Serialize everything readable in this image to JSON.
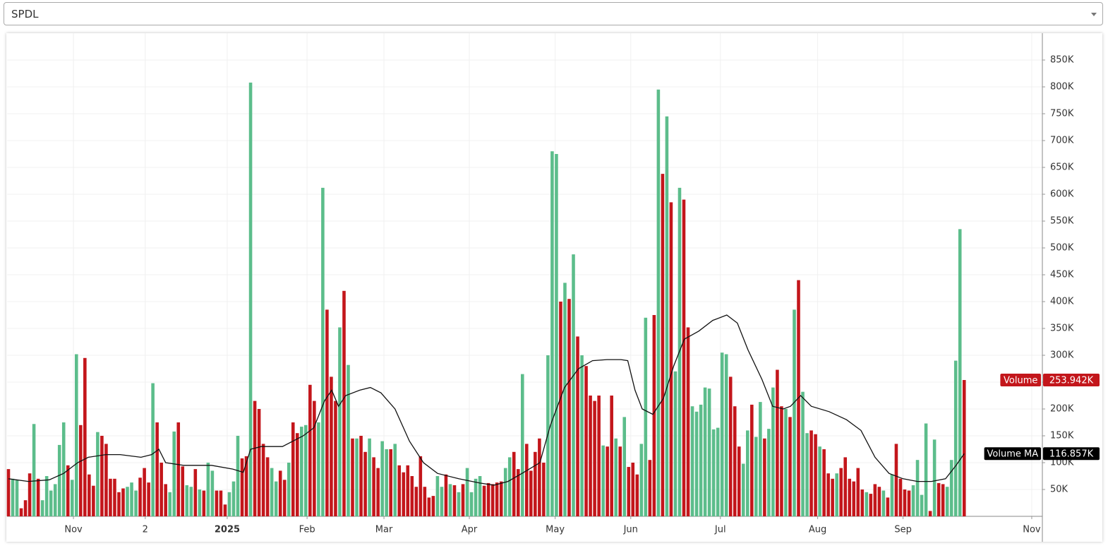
{
  "symbol": "SPDL",
  "chart_data": {
    "type": "bar",
    "xlim": [
      -0.33,
      243.4
    ],
    "xticks": [
      {
        "value": 15.3,
        "label": "Nov"
      },
      {
        "value": 32.2,
        "label": "2"
      },
      {
        "value": 51.5,
        "label": "2025",
        "bold": true
      },
      {
        "value": 70.3,
        "label": "Feb"
      },
      {
        "value": 88.4,
        "label": "Mar"
      },
      {
        "value": 108.5,
        "label": "Apr"
      },
      {
        "value": 128.7,
        "label": "May"
      },
      {
        "value": 146.5,
        "label": "Jun"
      },
      {
        "value": 167.6,
        "label": "Jul"
      },
      {
        "value": 190.5,
        "label": "Aug"
      },
      {
        "value": 210.6,
        "label": "Sep"
      },
      {
        "value": 240.9,
        "label": "Nov"
      }
    ],
    "ylim": [
      0,
      900000
    ],
    "yticks": [
      {
        "value": 50000,
        "label": "50K"
      },
      {
        "value": 100000,
        "label": "100K"
      },
      {
        "value": 150000,
        "label": "150K"
      },
      {
        "value": 200000,
        "label": "200K"
      },
      {
        "value": 250000,
        "label": "250K"
      },
      {
        "value": 300000,
        "label": "300K"
      },
      {
        "value": 350000,
        "label": "350K"
      },
      {
        "value": 400000,
        "label": "400K"
      },
      {
        "value": 450000,
        "label": "450K"
      },
      {
        "value": 500000,
        "label": "500K"
      },
      {
        "value": 550000,
        "label": "550K"
      },
      {
        "value": 600000,
        "label": "600K"
      },
      {
        "value": 650000,
        "label": "650K"
      },
      {
        "value": 700000,
        "label": "700K"
      },
      {
        "value": 750000,
        "label": "750K"
      },
      {
        "value": 800000,
        "label": "800K"
      },
      {
        "value": 850000,
        "label": "850K"
      }
    ],
    "grid": true,
    "series": [
      {
        "name": "Volume",
        "type": "bar",
        "badge_color": "#c3161b",
        "values": [
          88000,
          70000,
          68000,
          15000,
          30000,
          80000,
          172000,
          70000,
          30000,
          75000,
          48000,
          60000,
          133000,
          175000,
          95000,
          68000,
          302000,
          170000,
          295000,
          78000,
          57000,
          157000,
          150000,
          135000,
          70000,
          70000,
          45000,
          52000,
          55000,
          63000,
          48000,
          72000,
          90000,
          63000,
          248000,
          175000,
          100000,
          60000,
          45000,
          158000,
          175000,
          93000,
          58000,
          55000,
          88000,
          50000,
          48000,
          100000,
          85000,
          48000,
          48000,
          22000,
          45000,
          65000,
          150000,
          108000,
          112000,
          808000,
          215000,
          200000,
          135000,
          110000,
          90000,
          65000,
          85000,
          68000,
          100000,
          175000,
          155000,
          167000,
          170000,
          245000,
          215000,
          175000,
          612000,
          385000,
          260000,
          215000,
          352000,
          420000,
          282000,
          145000,
          145000,
          150000,
          120000,
          145000,
          110000,
          90000,
          140000,
          125000,
          125000,
          135000,
          95000,
          82000,
          95000,
          75000,
          55000,
          112000,
          55000,
          35000,
          38000,
          75000,
          55000,
          78000,
          60000,
          58000,
          45000,
          60000,
          90000,
          45000,
          70000,
          75000,
          57000,
          62000,
          60000,
          63000,
          65000,
          90000,
          110000,
          120000,
          88000,
          265000,
          135000,
          85000,
          120000,
          145000,
          100000,
          300000,
          680000,
          675000,
          400000,
          435000,
          405000,
          488000,
          335000,
          300000,
          280000,
          225000,
          215000,
          225000,
          132000,
          130000,
          225000,
          145000,
          130000,
          185000,
          92000,
          100000,
          78000,
          135000,
          370000,
          105000,
          375000,
          795000,
          638000,
          745000,
          585000,
          270000,
          612000,
          590000,
          352000,
          205000,
          195000,
          208000,
          240000,
          238000,
          162000,
          165000,
          305000,
          302000,
          260000,
          205000,
          130000,
          98000,
          160000,
          208000,
          148000,
          213000,
          145000,
          163000,
          240000,
          273000,
          205000,
          200000,
          185000,
          385000,
          440000,
          232000,
          155000,
          160000,
          153000,
          130000,
          125000,
          80000,
          70000,
          80000,
          90000,
          110000,
          70000,
          65000,
          90000,
          50000,
          45000,
          42000,
          60000,
          55000,
          48000,
          35000,
          78000,
          135000,
          70000,
          50000,
          48000,
          58000,
          105000,
          40000,
          173000,
          10000,
          143000,
          62000,
          60000,
          55000,
          105000,
          290000,
          535000,
          253942
        ],
        "colors": [
          "#c3161b",
          "#5cbd8b",
          "#5cbd8b",
          "#c3161b",
          "#c3161b",
          "#c3161b",
          "#5cbd8b",
          "#c3161b",
          "#5cbd8b",
          "#5cbd8b",
          "#5cbd8b",
          "#5cbd8b",
          "#5cbd8b",
          "#5cbd8b",
          "#c3161b",
          "#5cbd8b",
          "#5cbd8b",
          "#c3161b",
          "#c3161b",
          "#c3161b",
          "#c3161b",
          "#5cbd8b",
          "#c3161b",
          "#c3161b",
          "#c3161b",
          "#c3161b",
          "#c3161b",
          "#c3161b",
          "#5cbd8b",
          "#5cbd8b",
          "#5cbd8b",
          "#c3161b",
          "#c3161b",
          "#c3161b",
          "#5cbd8b",
          "#c3161b",
          "#c3161b",
          "#c3161b",
          "#5cbd8b",
          "#5cbd8b",
          "#c3161b",
          "#c3161b",
          "#5cbd8b",
          "#5cbd8b",
          "#c3161b",
          "#5cbd8b",
          "#c3161b",
          "#5cbd8b",
          "#5cbd8b",
          "#c3161b",
          "#c3161b",
          "#c3161b",
          "#5cbd8b",
          "#5cbd8b",
          "#5cbd8b",
          "#c3161b",
          "#c3161b",
          "#5cbd8b",
          "#c3161b",
          "#c3161b",
          "#c3161b",
          "#c3161b",
          "#5cbd8b",
          "#5cbd8b",
          "#c3161b",
          "#c3161b",
          "#5cbd8b",
          "#c3161b",
          "#c3161b",
          "#5cbd8b",
          "#5cbd8b",
          "#c3161b",
          "#c3161b",
          "#5cbd8b",
          "#5cbd8b",
          "#c3161b",
          "#c3161b",
          "#c3161b",
          "#5cbd8b",
          "#c3161b",
          "#5cbd8b",
          "#c3161b",
          "#5cbd8b",
          "#c3161b",
          "#c3161b",
          "#5cbd8b",
          "#c3161b",
          "#c3161b",
          "#5cbd8b",
          "#5cbd8b",
          "#c3161b",
          "#5cbd8b",
          "#c3161b",
          "#c3161b",
          "#c3161b",
          "#c3161b",
          "#c3161b",
          "#c3161b",
          "#c3161b",
          "#c3161b",
          "#c3161b",
          "#5cbd8b",
          "#5cbd8b",
          "#c3161b",
          "#5cbd8b",
          "#c3161b",
          "#5cbd8b",
          "#c3161b",
          "#5cbd8b",
          "#5cbd8b",
          "#5cbd8b",
          "#5cbd8b",
          "#c3161b",
          "#c3161b",
          "#c3161b",
          "#c3161b",
          "#c3161b",
          "#5cbd8b",
          "#5cbd8b",
          "#c3161b",
          "#c3161b",
          "#5cbd8b",
          "#c3161b",
          "#c3161b",
          "#c3161b",
          "#c3161b",
          "#c3161b",
          "#5cbd8b",
          "#5cbd8b",
          "#5cbd8b",
          "#c3161b",
          "#5cbd8b",
          "#c3161b",
          "#5cbd8b",
          "#c3161b",
          "#5cbd8b",
          "#c3161b",
          "#c3161b",
          "#c3161b",
          "#c3161b",
          "#5cbd8b",
          "#c3161b",
          "#c3161b",
          "#5cbd8b",
          "#c3161b",
          "#5cbd8b",
          "#c3161b",
          "#c3161b",
          "#c3161b",
          "#5cbd8b",
          "#5cbd8b",
          "#c3161b",
          "#c3161b",
          "#5cbd8b",
          "#c3161b",
          "#5cbd8b",
          "#c3161b",
          "#5cbd8b",
          "#5cbd8b",
          "#c3161b",
          "#c3161b",
          "#5cbd8b",
          "#5cbd8b",
          "#5cbd8b",
          "#5cbd8b",
          "#5cbd8b",
          "#5cbd8b",
          "#5cbd8b",
          "#5cbd8b",
          "#5cbd8b",
          "#c3161b",
          "#c3161b",
          "#c3161b",
          "#5cbd8b",
          "#5cbd8b",
          "#c3161b",
          "#5cbd8b",
          "#5cbd8b",
          "#c3161b",
          "#5cbd8b",
          "#5cbd8b",
          "#c3161b",
          "#c3161b",
          "#5cbd8b",
          "#c3161b",
          "#5cbd8b",
          "#c3161b",
          "#5cbd8b",
          "#5cbd8b",
          "#c3161b",
          "#c3161b",
          "#5cbd8b",
          "#c3161b",
          "#c3161b",
          "#c3161b",
          "#5cbd8b",
          "#c3161b",
          "#c3161b",
          "#c3161b",
          "#c3161b",
          "#c3161b",
          "#c3161b",
          "#5cbd8b",
          "#c3161b",
          "#c3161b",
          "#c3161b",
          "#5cbd8b",
          "#c3161b",
          "#5cbd8b",
          "#c3161b",
          "#c3161b",
          "#c3161b",
          "#c3161b",
          "#5cbd8b",
          "#5cbd8b",
          "#5cbd8b",
          "#5cbd8b",
          "#c3161b",
          "#5cbd8b",
          "#c3161b",
          "#c3161b",
          "#5cbd8b",
          "#5cbd8b",
          "#5cbd8b",
          "#5cbd8b",
          "#c3161b"
        ],
        "value_labels": [
          null,
          null,
          null,
          null,
          null,
          null,
          null,
          null,
          null,
          null,
          null,
          null,
          null,
          null,
          null,
          null,
          null,
          null,
          null,
          null,
          null,
          null,
          null,
          null,
          null,
          null,
          null,
          null,
          null,
          null,
          null,
          null,
          null,
          null,
          null,
          null,
          null,
          null,
          null,
          null,
          null,
          null,
          null,
          null,
          null,
          null,
          null,
          null,
          null,
          null,
          null,
          null,
          null,
          null,
          null,
          null,
          null,
          null,
          null,
          null,
          null,
          null,
          null,
          null,
          null,
          null,
          null,
          null,
          null,
          null,
          null,
          null,
          null,
          null,
          null,
          null,
          null,
          null,
          null,
          null,
          null,
          null,
          null,
          null,
          null,
          null,
          null,
          null,
          null,
          null,
          null,
          null,
          null,
          null,
          null,
          null,
          null,
          null,
          null,
          null,
          null,
          null,
          null,
          null,
          null,
          null,
          null,
          null,
          null,
          null,
          null,
          null,
          null,
          null,
          null,
          null,
          null,
          null,
          null,
          null,
          null,
          null,
          null,
          null,
          null,
          null,
          null,
          null,
          null,
          null,
          null,
          null,
          null,
          null,
          null,
          null,
          null,
          null,
          null,
          null,
          null,
          null,
          null,
          null,
          null,
          null,
          null,
          null,
          null,
          null,
          null,
          null,
          null,
          null,
          null,
          null,
          null,
          null,
          null,
          null,
          null,
          null,
          null,
          null,
          null,
          null,
          null,
          null,
          null,
          null,
          null,
          null,
          null,
          null,
          null,
          null,
          null,
          null,
          null,
          null,
          null,
          null,
          null,
          null,
          null,
          null,
          null,
          null,
          null,
          null,
          null,
          null,
          null,
          null,
          null,
          null,
          null,
          null,
          null,
          null,
          null,
          null,
          null,
          null,
          null,
          null,
          null,
          null,
          null,
          null,
          null,
          null,
          null,
          null,
          null,
          null,
          null,
          null,
          null,
          null,
          null,
          null,
          null,
          null,
          null,
          "253.942K"
        ]
      },
      {
        "name": "Volume MA",
        "type": "line",
        "color": "#111111",
        "badge_color": "#000000",
        "x": [
          0,
          4.7,
          9.6,
          13,
          16.3,
          18.8,
          22.9,
          26.3,
          31.2,
          33.7,
          35.4,
          37,
          41.2,
          47.8,
          52.8,
          55.3,
          57,
          59.5,
          64.5,
          69.4,
          71.9,
          74.4,
          76.1,
          77.7,
          79.4,
          82.7,
          85.2,
          87.7,
          91,
          94.4,
          97.7,
          101,
          106,
          111,
          114.3,
          117.6,
          120.9,
          125.1,
          127.6,
          130.9,
          134.2,
          137.5,
          140.9,
          144.2,
          145.8,
          147.5,
          149.2,
          151.7,
          154.2,
          156.6,
          159.1,
          162.5,
          165.8,
          169.1,
          171.6,
          174.1,
          177.4,
          179.9,
          182.4,
          184.1,
          186.5,
          189,
          193.2,
          197.3,
          200.7,
          204,
          207.3,
          210.6,
          214,
          217.3,
          220.6,
          223.1,
          225
        ],
        "values": [
          70000,
          65000,
          68000,
          80000,
          100000,
          110000,
          115000,
          115000,
          110000,
          115000,
          125000,
          100000,
          95000,
          95000,
          88000,
          82000,
          125000,
          130000,
          130000,
          150000,
          165000,
          215000,
          235000,
          205000,
          225000,
          235000,
          240000,
          230000,
          200000,
          140000,
          100000,
          80000,
          70000,
          62000,
          58000,
          65000,
          80000,
          100000,
          170000,
          240000,
          275000,
          290000,
          292000,
          292000,
          290000,
          235000,
          200000,
          190000,
          220000,
          280000,
          330000,
          345000,
          365000,
          375000,
          360000,
          310000,
          255000,
          205000,
          200000,
          205000,
          225000,
          205000,
          195000,
          180000,
          160000,
          110000,
          80000,
          70000,
          65000,
          65000,
          70000,
          95000,
          116857
        ],
        "value_labels": [
          null,
          null,
          null,
          null,
          null,
          null,
          null,
          null,
          null,
          null,
          null,
          null,
          null,
          null,
          null,
          null,
          null,
          null,
          null,
          null,
          null,
          null,
          null,
          null,
          null,
          null,
          null,
          null,
          null,
          null,
          null,
          null,
          null,
          null,
          null,
          null,
          null,
          null,
          null,
          null,
          null,
          null,
          null,
          null,
          null,
          null,
          null,
          null,
          null,
          null,
          null,
          null,
          null,
          null,
          null,
          null,
          null,
          null,
          null,
          null,
          null,
          null,
          null,
          null,
          null,
          null,
          null,
          null,
          null,
          null,
          null,
          null,
          "116.857K"
        ]
      }
    ]
  }
}
